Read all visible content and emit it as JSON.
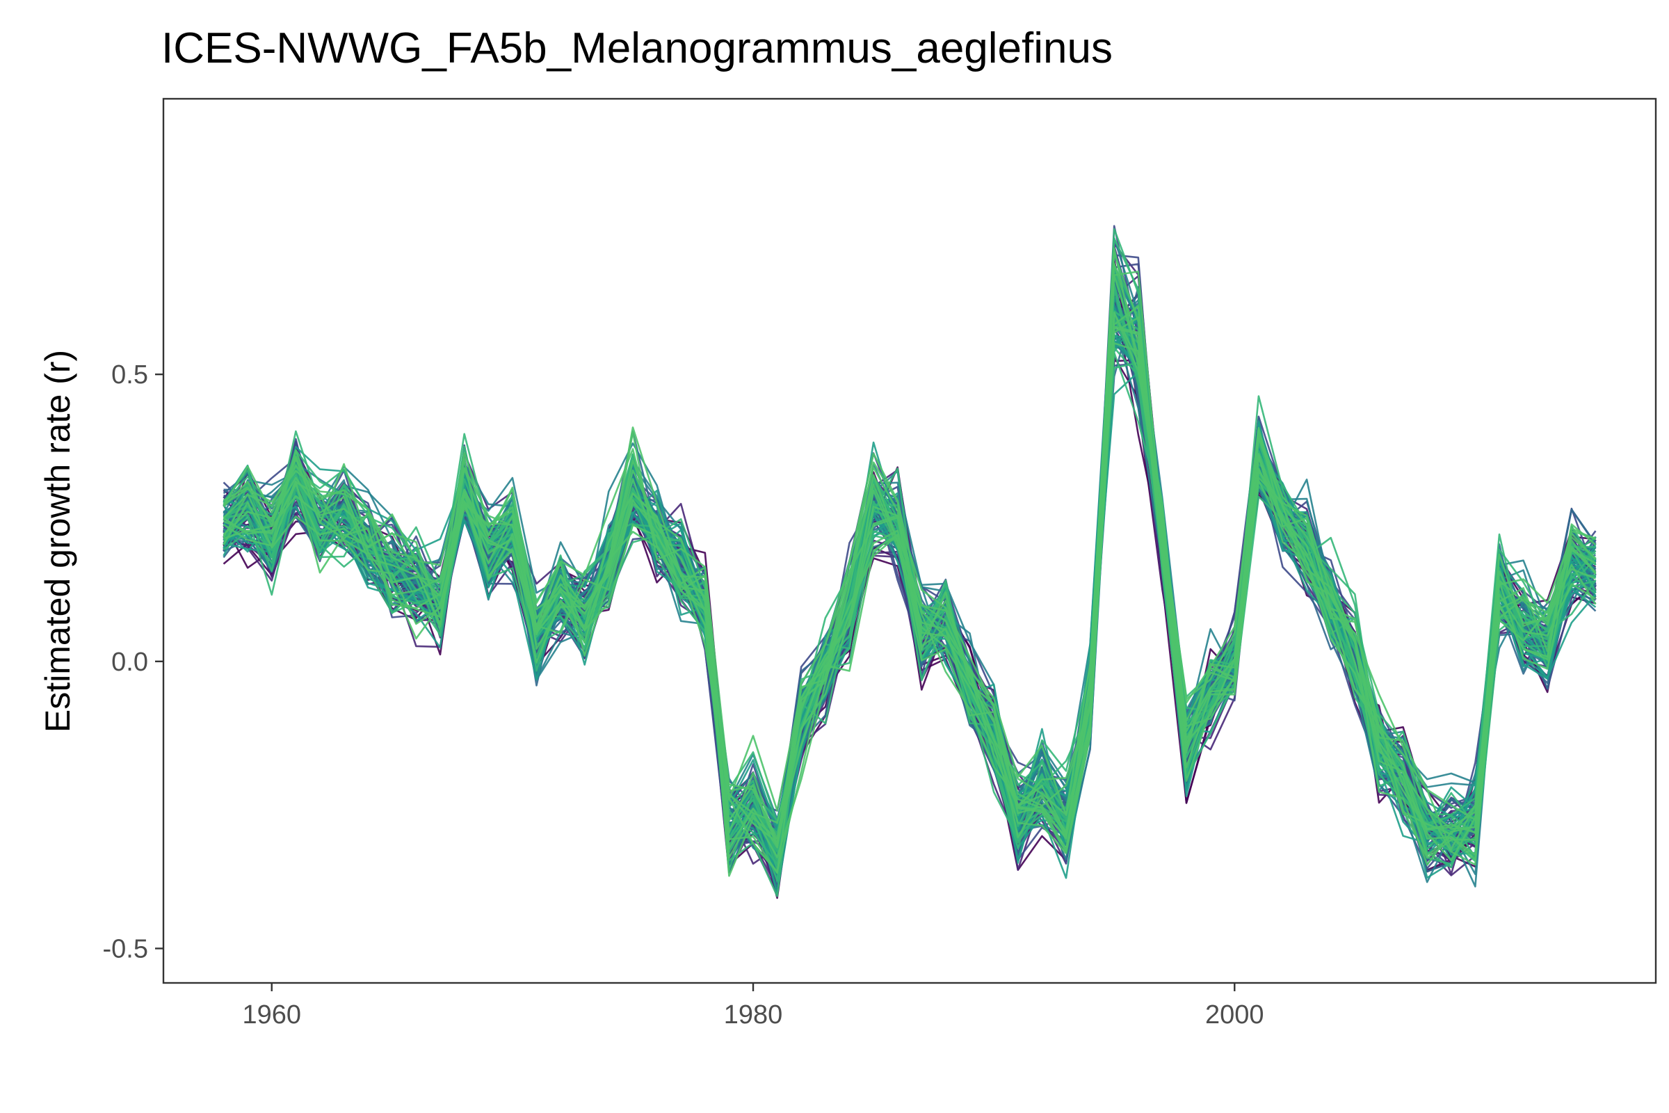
{
  "chart_data": {
    "type": "line",
    "title": "ICES-NWWG_FA5b_Melanogrammus_aeglefinus",
    "xlabel": "",
    "ylabel": "Estimated growth rate (r)",
    "xlim": [
      1955.5,
      2017.5
    ],
    "ylim": [
      -0.56,
      0.98
    ],
    "x_ticks": [
      1960,
      1980,
      2000
    ],
    "x_tick_labels": [
      "1960",
      "1980",
      "2000"
    ],
    "y_ticks": [
      -0.5,
      0.0,
      0.5
    ],
    "y_tick_labels": [
      "-0.5",
      "0.0",
      "0.5"
    ],
    "grid": false,
    "legend": "none",
    "ensemble_size": 100,
    "x": [
      1958,
      1959,
      1960,
      1961,
      1962,
      1963,
      1964,
      1965,
      1966,
      1967,
      1968,
      1969,
      1970,
      1971,
      1972,
      1973,
      1974,
      1975,
      1976,
      1977,
      1978,
      1979,
      1980,
      1981,
      1982,
      1983,
      1984,
      1985,
      1986,
      1987,
      1988,
      1989,
      1990,
      1991,
      1992,
      1993,
      1994,
      1995,
      1996,
      1997,
      1998,
      1999,
      2000,
      2001,
      2002,
      2003,
      2004,
      2005,
      2006,
      2007,
      2008,
      2009,
      2010,
      2011,
      2012,
      2013,
      2014,
      2015
    ],
    "series_median": [
      0.24,
      0.27,
      0.22,
      0.32,
      0.24,
      0.26,
      0.21,
      0.16,
      0.14,
      0.1,
      0.3,
      0.2,
      0.23,
      0.04,
      0.12,
      0.08,
      0.17,
      0.3,
      0.22,
      0.16,
      0.1,
      -0.29,
      -0.25,
      -0.33,
      -0.1,
      -0.01,
      0.09,
      0.27,
      0.24,
      0.05,
      0.07,
      -0.04,
      -0.12,
      -0.26,
      -0.22,
      -0.28,
      -0.07,
      0.62,
      0.55,
      0.21,
      -0.15,
      -0.05,
      0.0,
      0.36,
      0.25,
      0.2,
      0.1,
      0.01,
      -0.15,
      -0.2,
      -0.29,
      -0.31,
      -0.27,
      0.13,
      0.06,
      0.03,
      0.17,
      0.16
    ],
    "spread": 0.065,
    "colors": [
      "#440154",
      "#482878",
      "#3e4a89",
      "#31688e",
      "#26828e",
      "#1f9e89",
      "#35b779",
      "#4ec36b"
    ]
  }
}
